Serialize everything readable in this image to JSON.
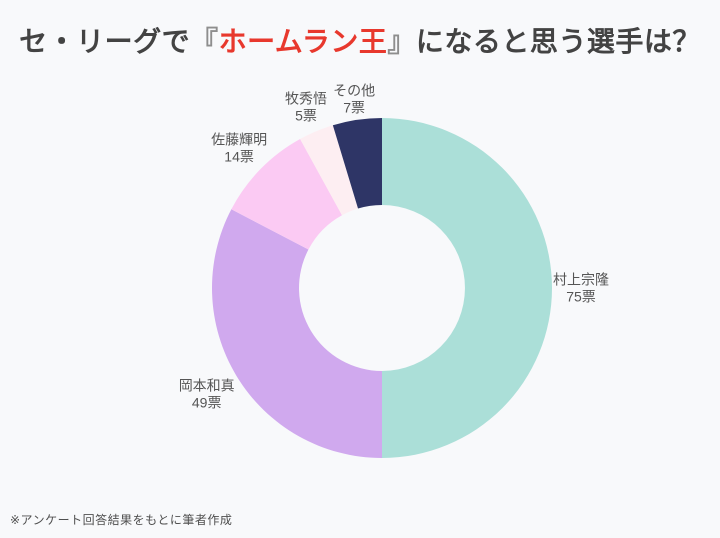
{
  "title": {
    "prefix": "セ・リーグで",
    "bracket_open": "『",
    "highlight": "ホームラン王",
    "bracket_close": "』",
    "suffix": "になると思う選手は？",
    "text_color": "#434343",
    "highlight_color": "#e8382d",
    "bracket_color": "#8e8e8e"
  },
  "chart_data": {
    "type": "pie",
    "subtype": "donut",
    "title": "セ・リーグで『ホームラン王』になると思う選手は？",
    "unit": "票",
    "total": 150,
    "start_angle_deg": 0,
    "direction": "clockwise",
    "inner_radius_ratio": 0.49,
    "legend": "none",
    "labels": [
      "村上宗隆",
      "岡本和真",
      "佐藤輝明",
      "牧秀悟",
      "その他"
    ],
    "values": [
      75,
      49,
      14,
      5,
      7
    ],
    "value_labels": [
      "75票",
      "49票",
      "14票",
      "5票",
      "7票"
    ],
    "colors": [
      "#abdfd8",
      "#d0a9ee",
      "#fbcaf3",
      "#fdeef2",
      "#2e3566"
    ],
    "label_text_color": "#555555"
  },
  "footer": {
    "note": "※アンケート回答結果をもとに筆者作成",
    "text_color": "#4f4f4f"
  },
  "page": {
    "background_color": "#f8f9fb"
  }
}
